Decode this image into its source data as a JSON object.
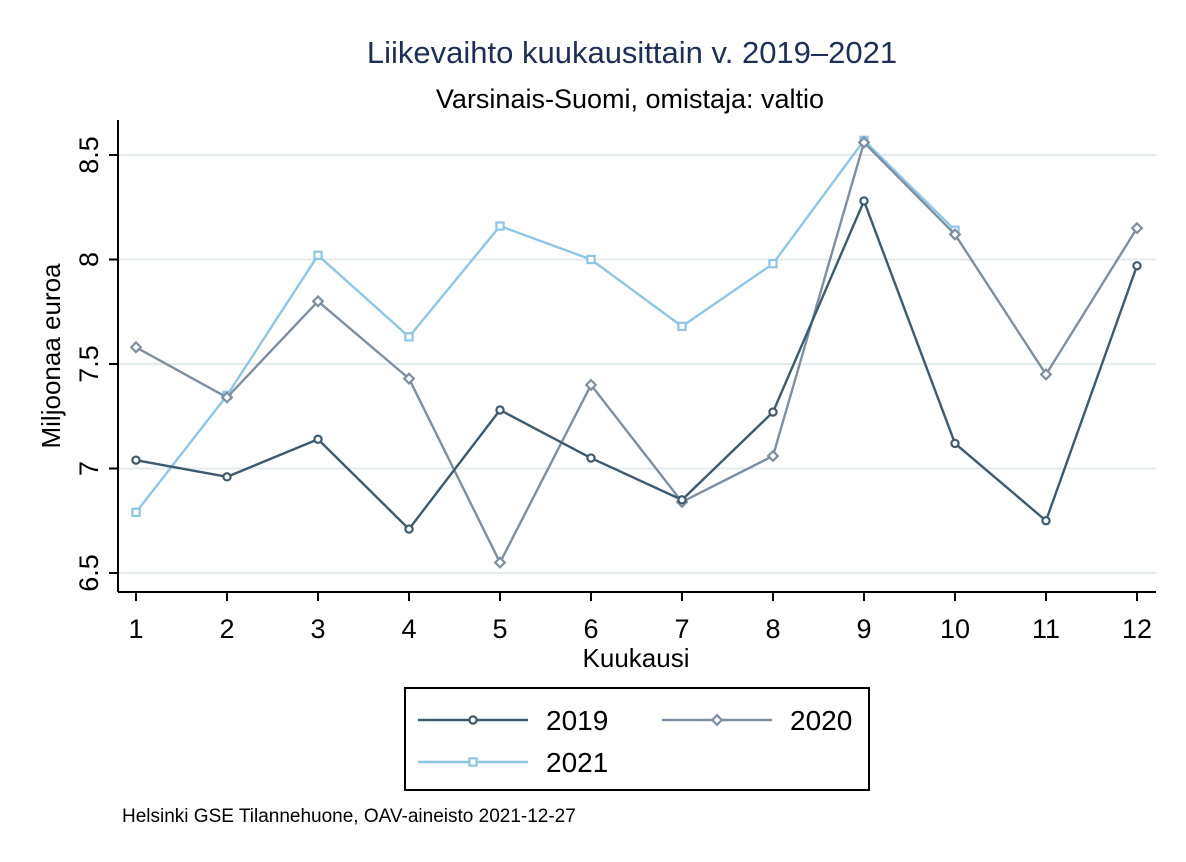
{
  "chart_data": {
    "type": "line",
    "title": "Liikevaihto kuukausittain v. 2019–2021",
    "subtitle": "Varsinais-Suomi, omistaja: valtio",
    "xlabel": "Kuukausi",
    "ylabel": "Miljoonaa euroa",
    "x": [
      1,
      2,
      3,
      4,
      5,
      6,
      7,
      8,
      9,
      10,
      11,
      12
    ],
    "x_tick_labels": [
      "1",
      "2",
      "3",
      "4",
      "5",
      "6",
      "7",
      "8",
      "9",
      "10",
      "11",
      "12"
    ],
    "y_ticks": [
      6.5,
      7,
      7.5,
      8,
      8.5
    ],
    "y_tick_labels": [
      "6.5",
      "7",
      "7.5",
      "8",
      "8.5"
    ],
    "ylim": [
      6.45,
      8.65
    ],
    "xlim": [
      0.8,
      12.2
    ],
    "grid": true,
    "legend_position": "bottom",
    "series": [
      {
        "name": "2019",
        "color": "#3e5a6e",
        "marker": "circle",
        "values": [
          7.04,
          6.96,
          7.14,
          6.71,
          7.28,
          7.05,
          6.85,
          7.27,
          8.28,
          7.12,
          6.75,
          7.97
        ]
      },
      {
        "name": "2020",
        "color": "#7f8fa0",
        "marker": "diamond",
        "values": [
          7.58,
          7.34,
          7.8,
          7.43,
          6.55,
          7.4,
          6.84,
          7.06,
          8.56,
          8.12,
          7.45,
          8.15
        ]
      },
      {
        "name": "2021",
        "color": "#8fc6e6",
        "marker": "square",
        "values": [
          6.79,
          7.35,
          8.02,
          7.63,
          8.16,
          8.0,
          7.68,
          7.98,
          8.57,
          8.14,
          null,
          null
        ]
      }
    ],
    "note": "Helsinki GSE Tilannehuone, OAV-aineisto 2021-12-27"
  }
}
